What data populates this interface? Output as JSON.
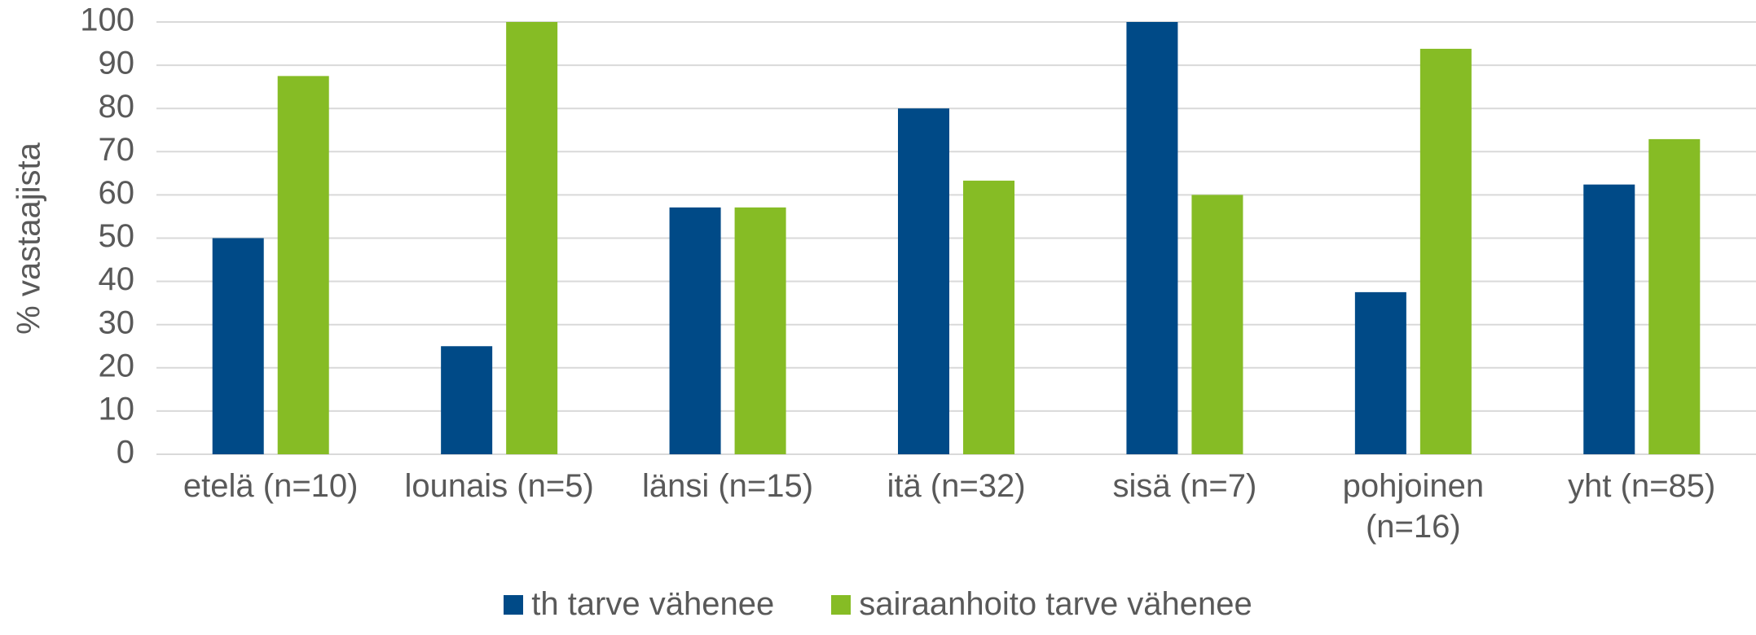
{
  "chart_data": {
    "type": "bar",
    "y_label": "% vastaajista",
    "categories": [
      "etelä (n=10)",
      "lounais (n=5)",
      "länsi (n=15)",
      "itä (n=32)",
      "sisä (n=7)",
      "pohjoinen (n=16)",
      "yht (n=85)"
    ],
    "series": [
      {
        "name": "th tarve vähenee",
        "color": "#004a87",
        "values": [
          50,
          25,
          57.1,
          80,
          100,
          37.5,
          62.4
        ]
      },
      {
        "name": "sairaanhoito tarve vähenee",
        "color": "#86bc25",
        "values": [
          87.5,
          100,
          57.1,
          63.3,
          60,
          93.8,
          72.9
        ]
      }
    ],
    "ylim": [
      0,
      100
    ],
    "yticks": [
      0,
      10,
      20,
      30,
      40,
      50,
      60,
      70,
      80,
      90,
      100
    ],
    "grid": true,
    "legend": "bottom"
  }
}
